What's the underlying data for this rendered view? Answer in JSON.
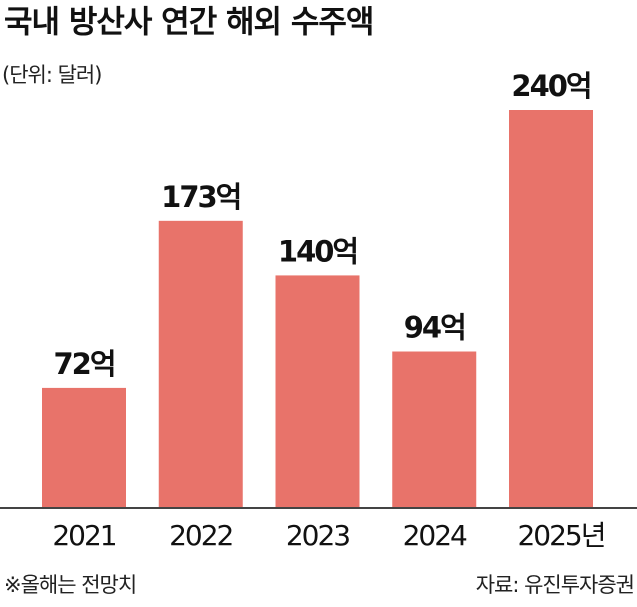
{
  "chart_data": {
    "type": "bar",
    "title": "국내 방산사 연간 해외 수주액",
    "subtitle": "(단위: 달러)",
    "categories": [
      "2021",
      "2022",
      "2023",
      "2024",
      "2025년"
    ],
    "values": [
      72,
      173,
      140,
      94,
      240
    ],
    "value_labels": [
      "72억",
      "173억",
      "140억",
      "94억",
      "240억"
    ],
    "color": "#e8736a",
    "note": "※올해는 전망치",
    "source": "자료: 유진투자증권"
  }
}
